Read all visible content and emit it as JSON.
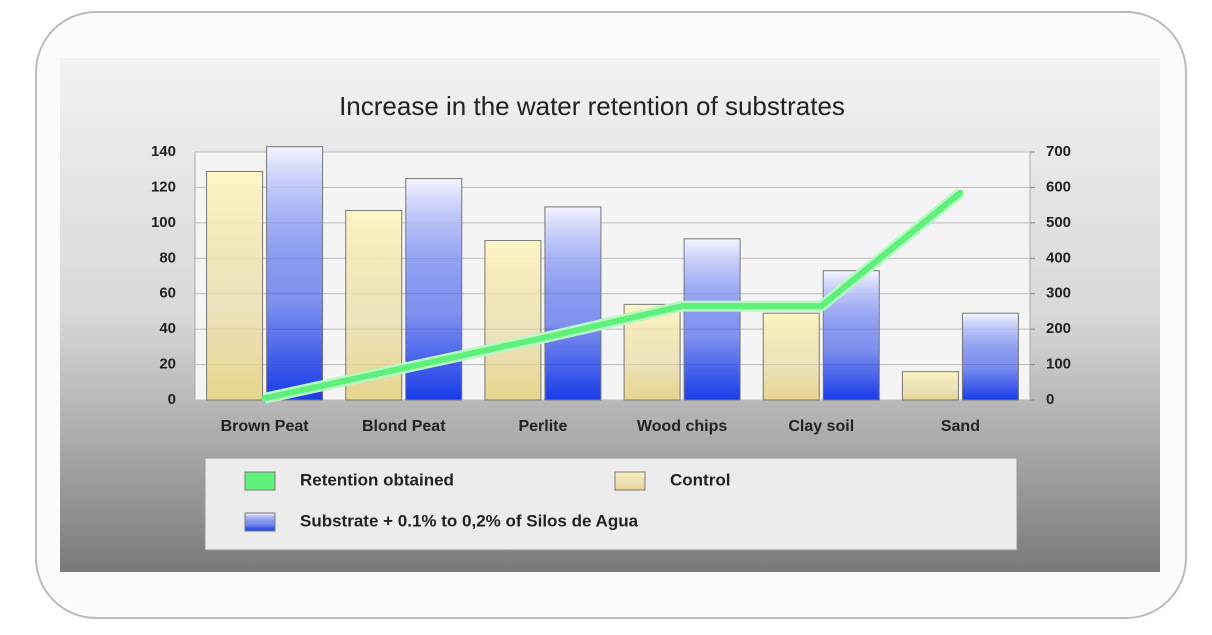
{
  "chart_data": {
    "type": "bar",
    "title": "Increase in the water retention of substrates",
    "categories": [
      "Brown Peat",
      "Blond Peat",
      "Perlite",
      "Wood chips",
      "Clay soil",
      "Sand"
    ],
    "series": [
      {
        "name": "Control",
        "color": "#e6d48c",
        "values": [
          129,
          107,
          90,
          54,
          49,
          16
        ]
      },
      {
        "name": "Substrate + 0.1% to 0,2% of Silos de Agua",
        "color": "#1a3ce8",
        "values": [
          143,
          125,
          109,
          91,
          73,
          49
        ]
      },
      {
        "name": "Retention obtained",
        "color": "#5ef07a",
        "axis": "y2",
        "values": [
          5,
          90,
          175,
          265,
          265,
          585
        ]
      }
    ],
    "ylim": [
      0,
      140
    ],
    "yticks": [
      0,
      20,
      40,
      60,
      80,
      100,
      120,
      140
    ],
    "y2lim": [
      0,
      700
    ],
    "y2ticks": [
      0,
      100,
      200,
      300,
      400,
      500,
      600,
      700
    ],
    "grid": true
  }
}
